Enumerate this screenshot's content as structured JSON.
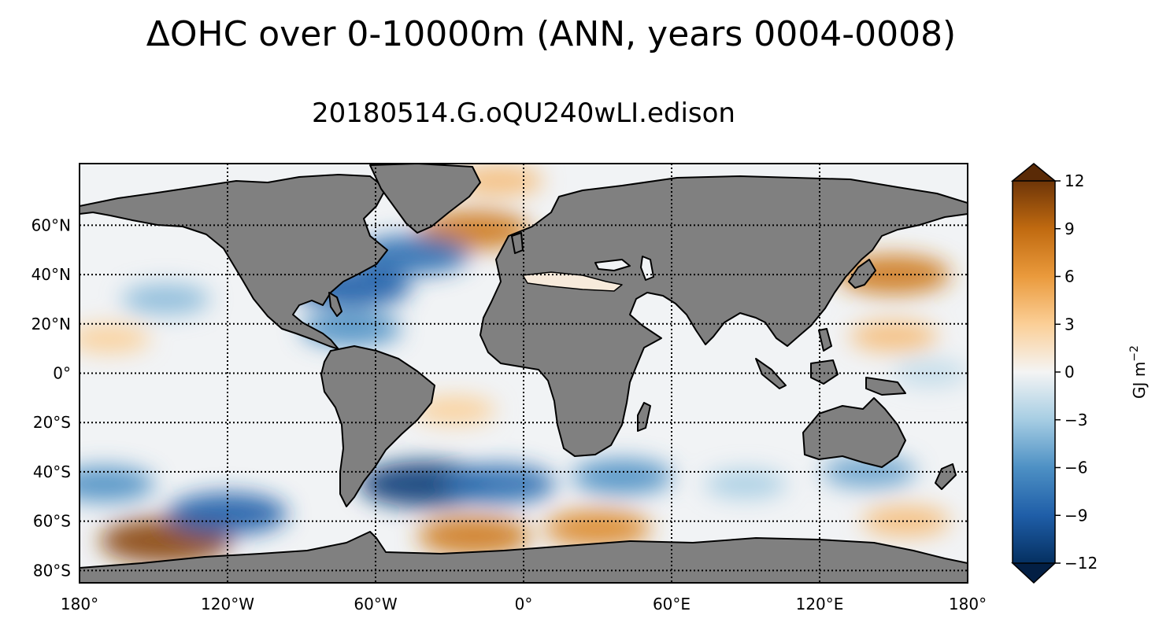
{
  "title": "ΔOHC over 0-10000m (ANN, years 0004-0008)",
  "subtitle": "20180514.G.oQU240wLI.edison",
  "map": {
    "projection": "PlateCarree",
    "lon_range": [
      -180,
      180
    ],
    "lat_range": [
      -85,
      85
    ],
    "land_color": "#808080",
    "gridlines": "dotted",
    "lon_ticks": [
      {
        "value": -180,
        "label": "180°"
      },
      {
        "value": -120,
        "label": "120°W"
      },
      {
        "value": -60,
        "label": "60°W"
      },
      {
        "value": 0,
        "label": "0°"
      },
      {
        "value": 60,
        "label": "60°E"
      },
      {
        "value": 120,
        "label": "120°E"
      },
      {
        "value": 180,
        "label": "180°"
      }
    ],
    "lat_ticks": [
      {
        "value": 60,
        "label": "60°N"
      },
      {
        "value": 40,
        "label": "40°N"
      },
      {
        "value": 20,
        "label": "20°N"
      },
      {
        "value": 0,
        "label": "0°"
      },
      {
        "value": -20,
        "label": "20°S"
      },
      {
        "value": -40,
        "label": "40°S"
      },
      {
        "value": -60,
        "label": "60°S"
      },
      {
        "value": -80,
        "label": "80°S"
      }
    ]
  },
  "chart_data": {
    "type": "heatmap",
    "title": "ΔOHC over 0-10000m (ANN, years 0004-0008)",
    "subtitle": "20180514.G.oQU240wLI.edison",
    "variable": "ΔOHC",
    "units": "GJ m⁻²",
    "range": [
      -12,
      12
    ],
    "extend": "both",
    "colormap": "blue-white-orange (diverging)",
    "anomalies": [
      {
        "lon": -20,
        "lat": 58,
        "value": 8
      },
      {
        "lon": -10,
        "lat": 78,
        "value": 4
      },
      {
        "lon": -45,
        "lat": 48,
        "value": -8
      },
      {
        "lon": -70,
        "lat": 35,
        "value": -9
      },
      {
        "lon": -70,
        "lat": 18,
        "value": -6
      },
      {
        "lon": -145,
        "lat": 30,
        "value": -4
      },
      {
        "lon": -168,
        "lat": 14,
        "value": 3
      },
      {
        "lon": 150,
        "lat": 40,
        "value": 8
      },
      {
        "lon": 150,
        "lat": 15,
        "value": 4
      },
      {
        "lon": 165,
        "lat": 0,
        "value": -2
      },
      {
        "lon": -28,
        "lat": -15,
        "value": 3
      },
      {
        "lon": -40,
        "lat": -45,
        "value": -11
      },
      {
        "lon": -10,
        "lat": -45,
        "value": -8
      },
      {
        "lon": 40,
        "lat": -42,
        "value": -6
      },
      {
        "lon": -145,
        "lat": -68,
        "value": 11
      },
      {
        "lon": -20,
        "lat": -66,
        "value": 8
      },
      {
        "lon": 30,
        "lat": -63,
        "value": 7
      },
      {
        "lon": -120,
        "lat": -57,
        "value": -9
      },
      {
        "lon": -170,
        "lat": -45,
        "value": -6
      },
      {
        "lon": 140,
        "lat": -40,
        "value": -5
      },
      {
        "lon": 155,
        "lat": -60,
        "value": 4
      },
      {
        "lon": 90,
        "lat": -45,
        "value": -3
      }
    ]
  },
  "colorbar": {
    "ticks": [
      {
        "value": 12,
        "label": "12"
      },
      {
        "value": 9,
        "label": "9"
      },
      {
        "value": 6,
        "label": "6"
      },
      {
        "value": 3,
        "label": "3"
      },
      {
        "value": 0,
        "label": "0"
      },
      {
        "value": -3,
        "label": "−3"
      },
      {
        "value": -6,
        "label": "−6"
      },
      {
        "value": -9,
        "label": "−9"
      },
      {
        "value": -12,
        "label": "−12"
      }
    ],
    "label": "GJ m",
    "label_exponent": "−2"
  }
}
